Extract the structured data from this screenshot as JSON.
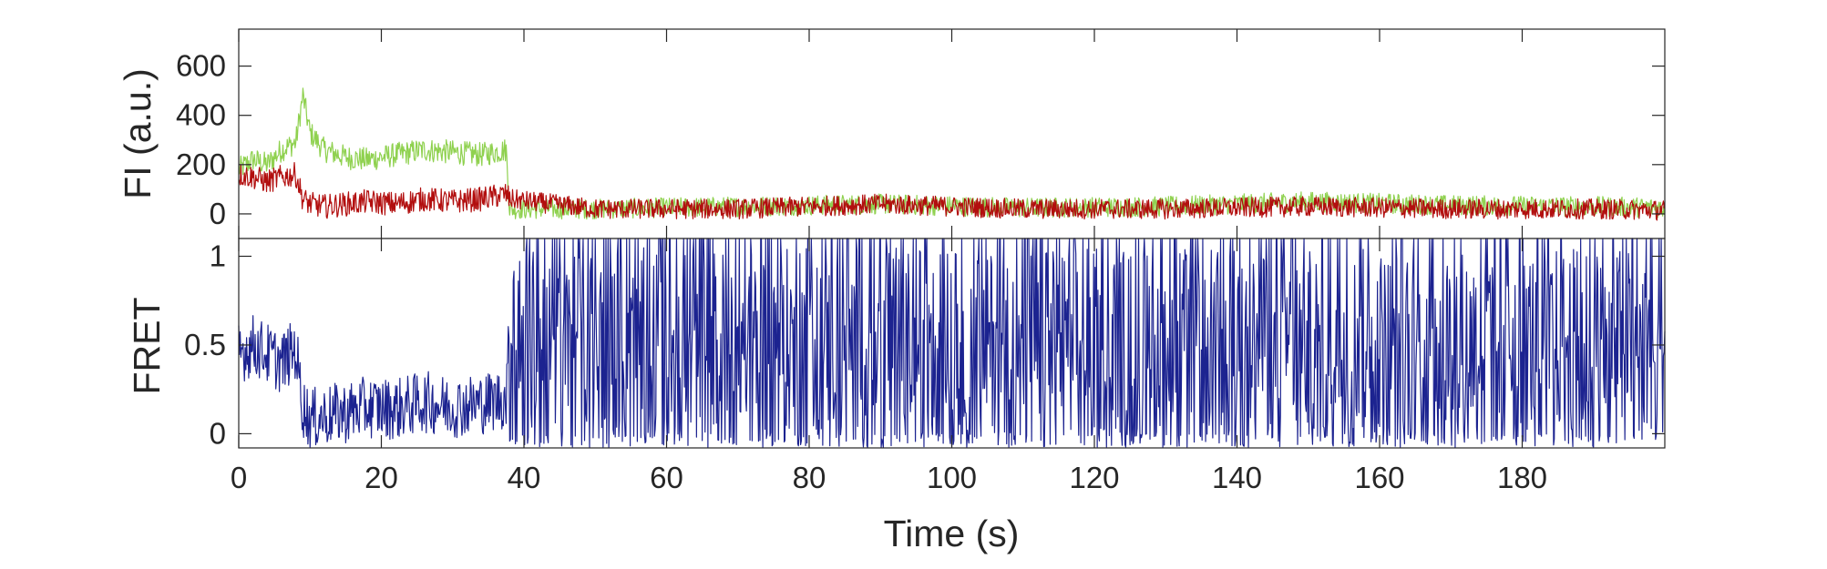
{
  "chart_data": [
    {
      "type": "line",
      "panel": "top",
      "ylabel": "FI (a.u.)",
      "xlabel": "",
      "xlim": [
        0,
        200
      ],
      "ylim": [
        -100,
        750
      ],
      "yticks": [
        0,
        200,
        400,
        600
      ],
      "grid": false,
      "legend": "none",
      "series": [
        {
          "color": "#8fd14f",
          "description_of_shape": "donor",
          "x": [
            0,
            2,
            4,
            6,
            8,
            9,
            10,
            12,
            15,
            18,
            22,
            26,
            30,
            34,
            37.5,
            38,
            50,
            70,
            90,
            110,
            130,
            150,
            170,
            190,
            200
          ],
          "y": [
            180,
            220,
            200,
            260,
            290,
            480,
            330,
            260,
            230,
            220,
            240,
            260,
            250,
            240,
            260,
            20,
            20,
            30,
            40,
            25,
            30,
            50,
            35,
            30,
            25
          ]
        },
        {
          "color": "#b20e0e",
          "description_of_shape": "acceptor",
          "x": [
            0,
            2,
            4,
            6,
            8,
            9,
            10,
            12,
            15,
            18,
            22,
            26,
            30,
            34,
            37.5,
            38,
            50,
            70,
            90,
            110,
            130,
            150,
            170,
            190,
            200
          ],
          "y": [
            160,
            150,
            130,
            150,
            160,
            60,
            40,
            30,
            40,
            50,
            40,
            60,
            50,
            60,
            80,
            60,
            20,
            20,
            40,
            20,
            20,
            30,
            20,
            20,
            15
          ]
        }
      ]
    },
    {
      "type": "line",
      "panel": "bottom",
      "ylabel": "FRET",
      "xlabel": "Time (s)",
      "xlim": [
        0,
        200
      ],
      "ylim": [
        -0.08,
        1.1
      ],
      "xticks": [
        0,
        20,
        40,
        60,
        80,
        100,
        120,
        140,
        160,
        180
      ],
      "yticks": [
        0,
        0.5,
        1
      ],
      "ytick_labels": [
        "0",
        "0.5",
        "1"
      ],
      "grid": false,
      "legend": "none",
      "series": [
        {
          "color": "#1c2390",
          "x": [
            0,
            2,
            4,
            6,
            8,
            9,
            10,
            12,
            15,
            18,
            22,
            26,
            30,
            34,
            37.5,
            38,
            50,
            70,
            90,
            110,
            130,
            150,
            170,
            190,
            200
          ],
          "y": [
            0.45,
            0.5,
            0.45,
            0.4,
            0.48,
            0.15,
            0.08,
            0.1,
            0.12,
            0.15,
            0.14,
            0.18,
            0.15,
            0.17,
            0.2,
            0.6,
            0.55,
            0.5,
            0.55,
            0.5,
            0.55,
            0.5,
            0.5,
            0.55,
            0.5
          ]
        }
      ]
    }
  ]
}
